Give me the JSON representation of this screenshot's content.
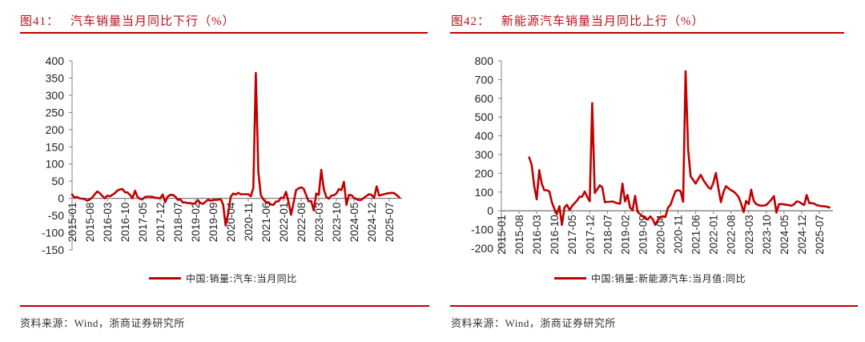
{
  "colors": {
    "accent": "#c00000",
    "title_text": "#b8101a",
    "series_line": "#c00000",
    "axis": "#808080",
    "text": "#222222"
  },
  "figures": [
    {
      "label": "图41：",
      "title": "汽车销量当月同比下行（%）",
      "legend": "中国:销量:汽车:当月同比",
      "source": "资料来源：Wind，浙商证券研究所"
    },
    {
      "label": "图42：",
      "title": "新能源汽车销量当月同比上行（%）",
      "legend": "中国:销量:新能源汽车:当月值:同比",
      "source": "资料来源：Wind，浙商证券研究所"
    }
  ],
  "chart_data": [
    {
      "type": "line",
      "title": "图41：汽车销量当月同比下行（%）",
      "xlabel": "",
      "ylabel": "%",
      "ylim": [
        -150,
        400
      ],
      "y_ticks": [
        400,
        350,
        300,
        250,
        200,
        150,
        100,
        50,
        0,
        -50,
        -100,
        -150
      ],
      "x_ticks": [
        "2015-01",
        "2015-08",
        "2016-03",
        "2016-10",
        "2017-05",
        "2017-12",
        "2018-07",
        "2019-02",
        "2019-09",
        "2020-04",
        "2020-11",
        "2021-06",
        "2022-01",
        "2022-08",
        "2023-03",
        "2023-10",
        "2024-05",
        "2024-12",
        "2025-07"
      ],
      "grid": false,
      "legend_position": "bottom",
      "series": [
        {
          "name": "中国:销量:汽车:当月同比",
          "x": [
            "2015-01",
            "2015-02",
            "2015-03",
            "2015-04",
            "2015-05",
            "2015-06",
            "2015-07",
            "2015-08",
            "2015-09",
            "2015-10",
            "2015-11",
            "2015-12",
            "2016-01",
            "2016-02",
            "2016-03",
            "2016-04",
            "2016-05",
            "2016-06",
            "2016-07",
            "2016-08",
            "2016-09",
            "2016-10",
            "2016-11",
            "2016-12",
            "2017-01",
            "2017-02",
            "2017-03",
            "2017-04",
            "2017-05",
            "2017-06",
            "2017-07",
            "2017-08",
            "2017-09",
            "2017-10",
            "2017-11",
            "2017-12",
            "2018-01",
            "2018-02",
            "2018-03",
            "2018-04",
            "2018-05",
            "2018-06",
            "2018-07",
            "2018-08",
            "2018-09",
            "2018-10",
            "2018-11",
            "2018-12",
            "2019-01",
            "2019-02",
            "2019-03",
            "2019-04",
            "2019-05",
            "2019-06",
            "2019-07",
            "2019-08",
            "2019-09",
            "2019-10",
            "2019-11",
            "2019-12",
            "2020-01",
            "2020-02",
            "2020-03",
            "2020-04",
            "2020-05",
            "2020-06",
            "2020-07",
            "2020-08",
            "2020-09",
            "2020-10",
            "2020-11",
            "2020-12",
            "2021-01",
            "2021-02",
            "2021-03",
            "2021-04",
            "2021-05",
            "2021-06",
            "2021-07",
            "2021-08",
            "2021-09",
            "2021-10",
            "2021-11",
            "2021-12",
            "2022-01",
            "2022-02",
            "2022-03",
            "2022-04",
            "2022-05",
            "2022-06",
            "2022-07",
            "2022-08",
            "2022-09",
            "2022-10",
            "2022-11",
            "2022-12",
            "2023-01",
            "2023-02",
            "2023-03",
            "2023-04",
            "2023-05",
            "2023-06",
            "2023-07",
            "2023-08",
            "2023-09",
            "2023-10",
            "2023-11",
            "2023-12",
            "2024-01",
            "2024-02",
            "2024-03",
            "2024-04",
            "2024-05",
            "2024-06",
            "2024-07",
            "2024-08",
            "2024-09",
            "2024-10",
            "2024-11",
            "2024-12",
            "2025-01",
            "2025-02",
            "2025-03",
            "2025-04",
            "2025-05",
            "2025-06",
            "2025-07",
            "2025-08",
            "2025-09",
            "2025-10",
            "2025-11"
          ],
          "values": [
            11,
            2,
            4,
            0,
            -1,
            -2,
            -7,
            -3,
            2,
            12,
            20,
            15,
            7,
            0,
            8,
            6,
            10,
            15,
            23,
            26,
            27,
            18,
            17,
            10,
            0,
            22,
            4,
            -2,
            -2,
            4,
            5,
            5,
            4,
            2,
            1,
            0,
            11,
            -11,
            5,
            10,
            10,
            5,
            -4,
            -3,
            -12,
            -12,
            -14,
            -14,
            -16,
            -14,
            -5,
            -14,
            -16,
            -10,
            -4,
            -7,
            -5,
            -4,
            -4,
            -2,
            -18,
            -79,
            -43,
            4,
            14,
            11,
            16,
            12,
            12,
            12,
            12,
            6,
            30,
            365,
            75,
            9,
            -3,
            -12,
            -11,
            -18,
            -19,
            -9,
            -9,
            2,
            1,
            19,
            -11,
            -48,
            -12,
            24,
            29,
            32,
            28,
            9,
            -9,
            -8,
            -35,
            14,
            10,
            83,
            27,
            4,
            -1,
            8,
            9,
            14,
            27,
            24,
            48,
            -19,
            10,
            9,
            1,
            -2,
            -5,
            -4,
            2,
            7,
            12,
            10,
            1,
            35,
            8,
            10,
            12,
            14,
            15,
            16,
            15,
            9,
            3
          ]
        }
      ]
    },
    {
      "type": "line",
      "title": "图42：新能源汽车销量当月同比上行（%）",
      "xlabel": "",
      "ylabel": "%",
      "ylim": [
        -200,
        800
      ],
      "y_ticks": [
        800,
        700,
        600,
        500,
        400,
        300,
        200,
        100,
        0,
        -100,
        -200
      ],
      "x_ticks": [
        "2015-01",
        "2015-08",
        "2016-03",
        "2016-10",
        "2017-05",
        "2017-12",
        "2018-07",
        "2019-02",
        "2019-09",
        "2020-04",
        "2020-11",
        "2021-06",
        "2022-01",
        "2022-08",
        "2023-03",
        "2023-10",
        "2024-05",
        "2024-12",
        "2025-07"
      ],
      "grid": false,
      "legend_position": "bottom",
      "series": [
        {
          "name": "中国:销量:新能源汽车:当月值:同比",
          "x": [
            "2015-12",
            "2016-01",
            "2016-02",
            "2016-03",
            "2016-04",
            "2016-05",
            "2016-06",
            "2016-07",
            "2016-08",
            "2016-09",
            "2016-10",
            "2016-11",
            "2016-12",
            "2017-01",
            "2017-02",
            "2017-03",
            "2017-04",
            "2017-05",
            "2017-06",
            "2017-07",
            "2017-08",
            "2017-09",
            "2017-10",
            "2017-11",
            "2017-12",
            "2018-01",
            "2018-02",
            "2018-03",
            "2018-04",
            "2018-05",
            "2018-06",
            "2018-07",
            "2018-08",
            "2018-09",
            "2018-10",
            "2018-11",
            "2018-12",
            "2019-01",
            "2019-02",
            "2019-03",
            "2019-04",
            "2019-05",
            "2019-06",
            "2019-07",
            "2019-08",
            "2019-09",
            "2019-10",
            "2019-11",
            "2019-12",
            "2020-01",
            "2020-02",
            "2020-03",
            "2020-04",
            "2020-05",
            "2020-06",
            "2020-07",
            "2020-08",
            "2020-09",
            "2020-10",
            "2020-11",
            "2020-12",
            "2021-01",
            "2021-02",
            "2021-03",
            "2021-04",
            "2021-05",
            "2021-06",
            "2021-07",
            "2021-08",
            "2021-09",
            "2021-10",
            "2021-11",
            "2021-12",
            "2022-01",
            "2022-02",
            "2022-03",
            "2022-04",
            "2022-05",
            "2022-06",
            "2022-07",
            "2022-08",
            "2022-09",
            "2022-10",
            "2022-11",
            "2022-12",
            "2023-01",
            "2023-02",
            "2023-03",
            "2023-04",
            "2023-05",
            "2023-06",
            "2023-07",
            "2023-08",
            "2023-09",
            "2023-10",
            "2023-11",
            "2023-12",
            "2024-01",
            "2024-02",
            "2024-03",
            "2024-04",
            "2024-05",
            "2024-06",
            "2024-07",
            "2024-08",
            "2024-09",
            "2024-10",
            "2024-11",
            "2024-12",
            "2025-01",
            "2025-02",
            "2025-03",
            "2025-04",
            "2025-05",
            "2025-06",
            "2025-07",
            "2025-08",
            "2025-09",
            "2025-10",
            "2025-11"
          ],
          "values": [
            285,
            246,
            132,
            61,
            217,
            145,
            110,
            110,
            103,
            46,
            10,
            -18,
            25,
            -75,
            18,
            32,
            4,
            25,
            40,
            55,
            75,
            75,
            103,
            75,
            51,
            575,
            95,
            115,
            136,
            125,
            46,
            48,
            48,
            50,
            45,
            40,
            38,
            145,
            50,
            85,
            17,
            3,
            80,
            -5,
            -18,
            -30,
            -40,
            -47,
            -30,
            -45,
            -75,
            -50,
            -33,
            -30,
            -33,
            17,
            31,
            70,
            105,
            110,
            105,
            48,
            745,
            325,
            184,
            165,
            145,
            170,
            192,
            165,
            145,
            125,
            117,
            150,
            202,
            120,
            46,
            100,
            131,
            120,
            110,
            103,
            90,
            74,
            38,
            -7,
            53,
            36,
            113,
            53,
            36,
            30,
            27,
            28,
            31,
            45,
            60,
            78,
            -10,
            36,
            36,
            34,
            32,
            30,
            27,
            35,
            50,
            48,
            38,
            31,
            84,
            41,
            41,
            38,
            30,
            27,
            25,
            24,
            22,
            18
          ]
        }
      ]
    }
  ]
}
